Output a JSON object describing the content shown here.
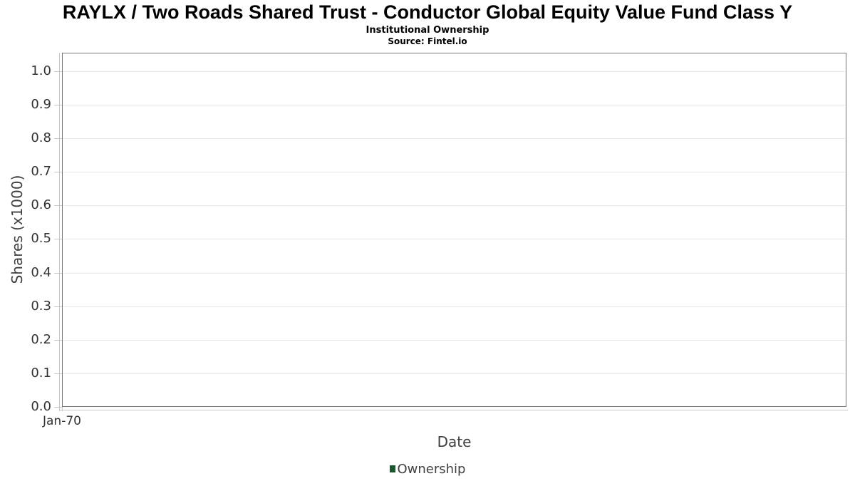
{
  "page": {
    "background": "#ffffff"
  },
  "chart_data": {
    "type": "line",
    "title": "RAYLX / Two Roads Shared Trust - Conductor Global Equity Value Fund Class Y",
    "subtitle": "Institutional Ownership",
    "source": "Source: Fintel.io",
    "xlabel": "Date",
    "ylabel": "Shares (x1000)",
    "x_ticks": [
      "Jan-70"
    ],
    "y_ticks": [
      "0.0",
      "0.1",
      "0.2",
      "0.3",
      "0.4",
      "0.5",
      "0.6",
      "0.7",
      "0.8",
      "0.9",
      "1.0"
    ],
    "ylim": [
      0,
      1.055
    ],
    "grid": "horizontal",
    "legend_position": "bottom-center",
    "series": [
      {
        "name": "Ownership",
        "color": "#1e5630",
        "marker": "square",
        "values": []
      }
    ]
  },
  "colors": {
    "title_text": "#000000",
    "plot_border": "#757575",
    "gridline": "#e8e8e8",
    "axis_line": "#c8c8c8",
    "tick_label": "#333333",
    "axis_title": "#3f3f3f",
    "legend_text": "#3f3f3f",
    "legend_marker": "#1e5630"
  }
}
